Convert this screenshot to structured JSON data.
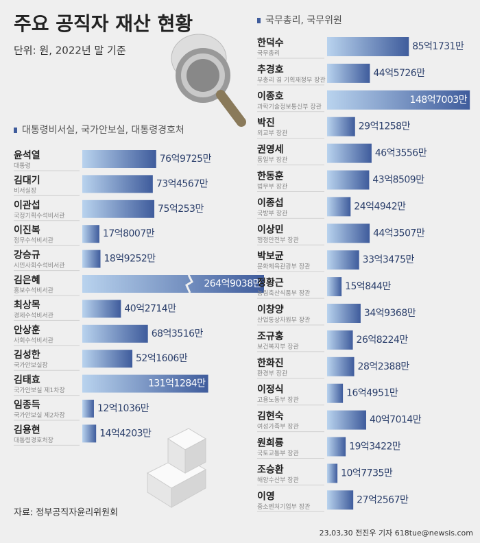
{
  "title": "주요 공직자 재산 현황",
  "subtitle": "단위: 원, 2022년 말 기준",
  "source": "자료: 정부공직자윤리위원회",
  "credit": "23,03,30 전진우 기자 618tue@newsis.com",
  "chart_data": [
    {
      "type": "bar",
      "orientation": "horizontal",
      "title": "대통령비서실, 국가안보실, 대통령경호처",
      "color": "#3f5c9c",
      "categories": [
        "윤석열",
        "김대기",
        "이관섭",
        "이진복",
        "강승규",
        "김은혜",
        "최상목",
        "안상훈",
        "김성한",
        "김태효",
        "임종득",
        "김용현"
      ],
      "roles": [
        "대통령",
        "비서실장",
        "국정기획수석비서관",
        "정무수석비서관",
        "시민사회수석비서관",
        "홍보수석비서관",
        "경제수석비서관",
        "사회수석비서관",
        "국가안보실장",
        "국가안보실 제1차장",
        "국가안보실 제2차장",
        "대통령경호처장"
      ],
      "values": [
        7697250000,
        7345670000,
        7502530000,
        1780070000,
        1892520000,
        26490380000,
        4027140000,
        6835160000,
        5216060000,
        13112840000,
        1210360000,
        1442030000
      ],
      "value_labels": [
        "76억9725만",
        "73억4567만",
        "75억253만",
        "17억8007만",
        "18억9252만",
        "264억9038만",
        "40억2714만",
        "68억3516만",
        "52억1606만",
        "131억1284만",
        "12억1036만",
        "14억4203만"
      ]
    },
    {
      "type": "bar",
      "orientation": "horizontal",
      "title": "국무총리, 국무위원",
      "color": "#3f5c9c",
      "categories": [
        "한덕수",
        "추경호",
        "이종호",
        "박진",
        "권영세",
        "한동훈",
        "이종섭",
        "이상민",
        "박보균",
        "정황근",
        "이창양",
        "조규홍",
        "한화진",
        "이정식",
        "김현숙",
        "원희룡",
        "조승환",
        "이영"
      ],
      "roles": [
        "국무총리",
        "부총리 겸 기획재정부 장관",
        "과학기술정보통신부 장관",
        "외교부 장관",
        "통일부 장관",
        "법무부 장관",
        "국방부 장관",
        "행정안전부 장관",
        "문화체육관광부 장관",
        "농림축산식품부 장관",
        "산업통상자원부 장관",
        "보건복지부 장관",
        "환경부 장관",
        "고용노동부 장관",
        "여성가족부 장관",
        "국토교통부 장관",
        "해양수산부 장관",
        "중소벤처기업부 장관"
      ],
      "values": [
        8517310000,
        4457260000,
        14870030000,
        2912580000,
        4635560000,
        4385090000,
        2449420000,
        4435070000,
        3334750000,
        1508440000,
        3493680000,
        2682240000,
        2823880000,
        1649510000,
        4070140000,
        1934220000,
        1077350000,
        2725670000
      ],
      "value_labels": [
        "85억1731만",
        "44억5726만",
        "148억7003만",
        "29억1258만",
        "46억3556만",
        "43억8509만",
        "24억4942만",
        "44억3507만",
        "33억3475만",
        "15억844만",
        "34억9368만",
        "26억8224만",
        "28억2388만",
        "16억4951만",
        "40억7014만",
        "19억3422만",
        "10억7735만",
        "27억2567만"
      ]
    }
  ]
}
